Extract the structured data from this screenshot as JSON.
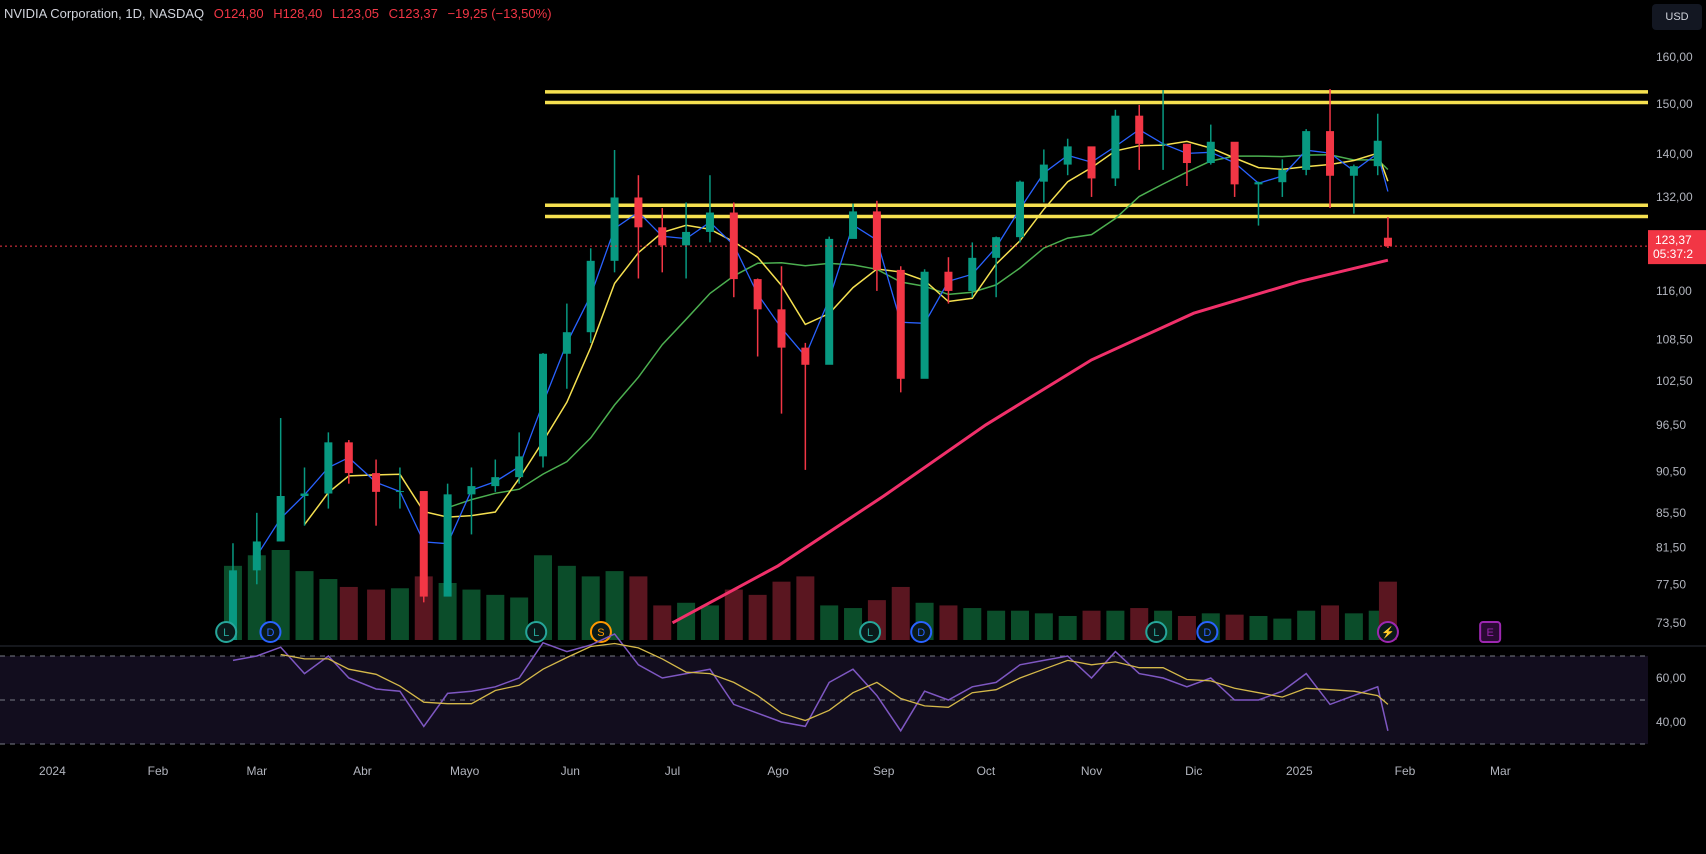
{
  "header": {
    "symbol": "NVIDIA Corporation, 1D, NASDAQ",
    "open": "O124,80",
    "high": "H128,40",
    "low": "L123,05",
    "close": "C123,37",
    "change": "−19,25 (−13,50%)"
  },
  "currency_button": "USD",
  "last_price_label": "123,37",
  "countdown_label": "05:37:2",
  "colors": {
    "up": "#089981",
    "down": "#f23645",
    "ma10": "#2962ff",
    "ma20": "#f5e050",
    "ma50": "#4caf50",
    "ma200": "#f0306a",
    "levels": "#f5e050",
    "rsi": "#7e57c2",
    "rsi_ma": "#d4b84a"
  },
  "chart_data": {
    "type": "candlestick",
    "title": "NVIDIA Corporation, 1D, NASDAQ",
    "price_scale": "log",
    "ylim": [
      72,
      168
    ],
    "y_ticks": [
      "160,00",
      "150,00",
      "140,00",
      "132,00",
      "116,00",
      "108,50",
      "102,50",
      "96,50",
      "90,50",
      "85,50",
      "81,50",
      "77,50",
      "73,50"
    ],
    "y_tick_values": [
      160,
      150,
      140,
      132,
      116,
      108.5,
      102.5,
      96.5,
      90.5,
      85.5,
      81.5,
      77.5,
      73.5
    ],
    "x_ticks": [
      {
        "label": "2024",
        "date": "2024-01-01"
      },
      {
        "label": "Feb",
        "date": "2024-02-01"
      },
      {
        "label": "Mar",
        "date": "2024-03-01"
      },
      {
        "label": "Abr",
        "date": "2024-04-01"
      },
      {
        "label": "Mayo",
        "date": "2024-05-01"
      },
      {
        "label": "Jun",
        "date": "2024-06-01"
      },
      {
        "label": "Jul",
        "date": "2024-07-01"
      },
      {
        "label": "Ago",
        "date": "2024-08-01"
      },
      {
        "label": "Sep",
        "date": "2024-09-01"
      },
      {
        "label": "Oct",
        "date": "2024-10-01"
      },
      {
        "label": "Nov",
        "date": "2024-11-01"
      },
      {
        "label": "Dic",
        "date": "2024-12-01"
      },
      {
        "label": "2025",
        "date": "2025-01-01"
      },
      {
        "label": "Feb",
        "date": "2025-02-01"
      },
      {
        "label": "Mar",
        "date": "2025-03-01"
      }
    ],
    "dates": [
      "2024-02-23",
      "2024-03-01",
      "2024-03-08",
      "2024-03-15",
      "2024-03-22",
      "2024-03-28",
      "2024-04-05",
      "2024-04-12",
      "2024-04-19",
      "2024-04-26",
      "2024-05-03",
      "2024-05-10",
      "2024-05-17",
      "2024-05-24",
      "2024-05-31",
      "2024-06-07",
      "2024-06-14",
      "2024-06-21",
      "2024-06-28",
      "2024-07-05",
      "2024-07-12",
      "2024-07-19",
      "2024-07-26",
      "2024-08-02",
      "2024-08-09",
      "2024-08-16",
      "2024-08-23",
      "2024-08-30",
      "2024-09-06",
      "2024-09-13",
      "2024-09-20",
      "2024-09-27",
      "2024-10-04",
      "2024-10-11",
      "2024-10-18",
      "2024-10-25",
      "2024-11-01",
      "2024-11-08",
      "2024-11-15",
      "2024-11-22",
      "2024-11-29",
      "2024-12-06",
      "2024-12-13",
      "2024-12-20",
      "2024-12-27",
      "2025-01-03",
      "2025-01-10",
      "2025-01-17",
      "2025-01-24",
      "2025-01-27"
    ],
    "close": [
      79.0,
      82.2,
      87.5,
      87.8,
      94.2,
      90.3,
      88.0,
      88.1,
      76.2,
      87.7,
      88.7,
      89.8,
      92.4,
      106.4,
      109.6,
      120.9,
      131.9,
      126.6,
      123.5,
      125.8,
      129.2,
      117.9,
      113.1,
      107.3,
      104.8,
      124.6,
      129.4,
      119.4,
      102.8,
      119.1,
      116.0,
      121.4,
      124.9,
      134.8,
      138.0,
      141.5,
      135.4,
      147.6,
      142.0,
      142.0,
      138.3,
      142.4,
      134.3,
      134.7,
      137.0,
      144.5,
      135.9,
      137.7,
      142.6,
      123.37
    ],
    "high": [
      82.0,
      85.5,
      97.4,
      91.0,
      95.5,
      94.5,
      92.0,
      91.0,
      86.0,
      89.0,
      91.0,
      92.0,
      95.5,
      106.5,
      114.0,
      123.0,
      140.8,
      136.0,
      130.0,
      131.0,
      136.0,
      131.0,
      118.0,
      120.0,
      108.0,
      125.0,
      130.8,
      131.3,
      120.0,
      119.5,
      121.5,
      124.0,
      125.0,
      135.0,
      140.9,
      143.0,
      140.0,
      148.8,
      149.8,
      152.9,
      142.0,
      145.8,
      141.0,
      134.8,
      139.0,
      144.9,
      153.1,
      138.0,
      148.0,
      128.4
    ],
    "low": [
      66.0,
      77.5,
      84.0,
      84.0,
      86.0,
      89.0,
      84.0,
      86.0,
      75.6,
      80.0,
      83.0,
      88.0,
      89.0,
      91.0,
      101.4,
      108.0,
      119.0,
      118.0,
      119.0,
      118.0,
      124.0,
      115.0,
      106.0,
      98.0,
      90.7,
      105.0,
      125.0,
      116.0,
      100.9,
      103.0,
      114.0,
      115.0,
      115.0,
      124.0,
      131.0,
      136.0,
      132.0,
      134.0,
      137.0,
      137.0,
      134.0,
      138.0,
      132.0,
      126.9,
      132.0,
      136.0,
      130.0,
      129.0,
      136.0,
      123.05
    ],
    "ma200": {
      "dates": [
        "2024-07-01",
        "2024-08-01",
        "2024-09-01",
        "2024-10-01",
        "2024-11-01",
        "2024-12-01",
        "2025-01-01",
        "2025-01-27"
      ],
      "values": [
        73.5,
        79.5,
        87.5,
        96.5,
        105.5,
        112.5,
        117.5,
        121.0
      ]
    },
    "volume": [
      600,
      680,
      720,
      560,
      500,
      440,
      420,
      430,
      520,
      470,
      420,
      380,
      360,
      680,
      600,
      520,
      560,
      520,
      300,
      320,
      300,
      420,
      380,
      480,
      520,
      300,
      280,
      340,
      440,
      320,
      300,
      280,
      260,
      260,
      240,
      220,
      260,
      260,
      280,
      260,
      220,
      240,
      230,
      220,
      200,
      260,
      300,
      240,
      260,
      480
    ],
    "rsi": {
      "ylim": [
        25,
        75
      ],
      "levels": [
        70,
        50,
        30
      ],
      "y_ticks": [
        "60,00",
        "40,00"
      ],
      "y_tick_values": [
        60,
        40
      ],
      "values": [
        68,
        70,
        74,
        62,
        70,
        60,
        55,
        54,
        38,
        53,
        54,
        56,
        60,
        76,
        72,
        75,
        80,
        66,
        60,
        62,
        64,
        48,
        44,
        40,
        38,
        58,
        64,
        52,
        36,
        54,
        50,
        56,
        58,
        66,
        68,
        70,
        60,
        72,
        62,
        60,
        56,
        60,
        50,
        50,
        54,
        62,
        48,
        52,
        56,
        36
      ]
    },
    "horizontal_levels": [
      152.5,
      150.3,
      130.5,
      128.5
    ],
    "events": [
      {
        "label": "L",
        "date": "2024-02-21",
        "type": "earnings"
      },
      {
        "label": "D",
        "date": "2024-03-05",
        "type": "dividend"
      },
      {
        "label": "L",
        "date": "2024-05-22",
        "type": "earnings"
      },
      {
        "label": "S",
        "date": "2024-06-10",
        "type": "split"
      },
      {
        "label": "L",
        "date": "2024-08-28",
        "type": "earnings"
      },
      {
        "label": "D",
        "date": "2024-09-12",
        "type": "dividend"
      },
      {
        "label": "L",
        "date": "2024-11-20",
        "type": "earnings"
      },
      {
        "label": "D",
        "date": "2024-12-05",
        "type": "dividend"
      },
      {
        "label": "⚡",
        "date": "2025-01-27",
        "type": "news"
      },
      {
        "label": "E",
        "date": "2025-02-26",
        "type": "upcoming-earnings"
      }
    ],
    "last_close": 123.37
  }
}
